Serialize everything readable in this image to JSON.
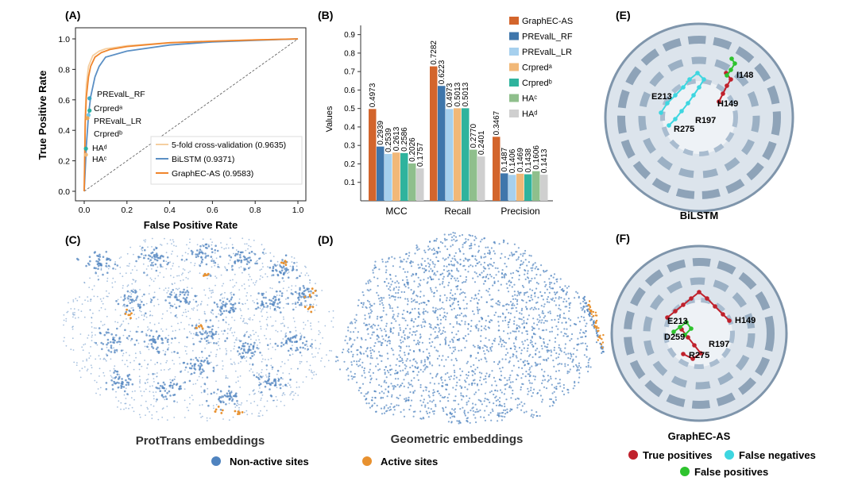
{
  "panels": {
    "a": "(A)",
    "b": "(B)",
    "c": "(C)",
    "d": "(D)",
    "e": "(E)",
    "f": "(F)"
  },
  "roc": {
    "xlabel": "False Positive Rate",
    "ylabel": "True Positive Rate",
    "ticks": [
      "0.0",
      "0.2",
      "0.4",
      "0.6",
      "0.8",
      "1.0"
    ],
    "point_labels": [
      "PREvalL_RF",
      "Crpredᵃ",
      "PREvalL_LR",
      "Crpredᵇ",
      "HAᵈ",
      "HAᶜ"
    ],
    "legend": [
      {
        "label": "5-fold cross-validation (0.9635)",
        "color": "#f5cfa0"
      },
      {
        "label": "BiLSTM (0.9371)",
        "color": "#5b8fc4"
      },
      {
        "label": "GraphEC-AS (0.9583)",
        "color": "#f0852c"
      }
    ]
  },
  "chart_data": [
    {
      "type": "line",
      "title": "",
      "xlabel": "False Positive Rate",
      "ylabel": "True Positive Rate",
      "xlim": [
        0,
        1
      ],
      "ylim": [
        0,
        1
      ],
      "series": [
        {
          "name": "5-fold cross-validation (0.9635)",
          "color": "#f5cfa0",
          "x": [
            0,
            0.005,
            0.01,
            0.02,
            0.04,
            0.07,
            0.1,
            0.2,
            0.4,
            0.6,
            0.8,
            1.0
          ],
          "y": [
            0,
            0.5,
            0.7,
            0.82,
            0.89,
            0.92,
            0.935,
            0.955,
            0.975,
            0.985,
            0.993,
            1.0
          ]
        },
        {
          "name": "BiLSTM (0.9371)",
          "color": "#5b8fc4",
          "x": [
            0,
            0.01,
            0.02,
            0.03,
            0.05,
            0.07,
            0.1,
            0.2,
            0.4,
            0.6,
            0.8,
            1.0
          ],
          "y": [
            0,
            0.3,
            0.5,
            0.62,
            0.75,
            0.82,
            0.88,
            0.92,
            0.96,
            0.98,
            0.99,
            1.0
          ]
        },
        {
          "name": "GraphEC-AS (0.9583)",
          "color": "#f0852c",
          "x": [
            0,
            0.005,
            0.01,
            0.02,
            0.03,
            0.05,
            0.08,
            0.12,
            0.2,
            0.4,
            0.6,
            0.8,
            1.0
          ],
          "y": [
            0,
            0.45,
            0.62,
            0.75,
            0.82,
            0.88,
            0.91,
            0.93,
            0.95,
            0.975,
            0.985,
            0.993,
            1.0
          ]
        }
      ],
      "points": [
        {
          "label": "PREvalL_RF",
          "x": 0.025,
          "y": 0.61
        },
        {
          "label": "Crpredᵃ",
          "x": 0.025,
          "y": 0.53
        },
        {
          "label": "PREvalL_LR",
          "x": 0.02,
          "y": 0.5
        },
        {
          "label": "Crpredᵇ",
          "x": 0.015,
          "y": 0.48
        },
        {
          "label": "HAᵈ",
          "x": 0.008,
          "y": 0.28
        },
        {
          "label": "HAᶜ",
          "x": 0.008,
          "y": 0.24
        }
      ]
    },
    {
      "type": "bar",
      "title": "",
      "xlabel": "",
      "ylabel": "Values",
      "ylim": [
        0,
        0.95
      ],
      "yticks": [
        "0.1",
        "0.2",
        "0.3",
        "0.4",
        "0.5",
        "0.6",
        "0.7",
        "0.8",
        "0.9"
      ],
      "categories": [
        "MCC",
        "Recall",
        "Precision"
      ],
      "series": [
        {
          "name": "GraphEC-AS",
          "color": "#d3652c",
          "values": [
            0.4973,
            0.7282,
            0.3467
          ],
          "labels": [
            "0.4973",
            "0.7282",
            "0.3467"
          ]
        },
        {
          "name": "PREvalL_RF",
          "color": "#3f76ab",
          "values": [
            0.2939,
            0.6223,
            0.1487
          ],
          "labels": [
            "0.2939",
            "0.6223",
            "0.1487"
          ]
        },
        {
          "name": "PREvalL_LR",
          "color": "#a6d0ee",
          "values": [
            0.2539,
            0.4973,
            0.1406
          ],
          "labels": [
            "0.2539",
            "0.4973",
            "0.1406"
          ]
        },
        {
          "name": "Crpredᵃ",
          "color": "#f1b878",
          "values": [
            0.2613,
            0.5013,
            0.1469
          ],
          "labels": [
            "0.2613",
            "0.5013",
            "0.1469"
          ]
        },
        {
          "name": "Crpredᵇ",
          "color": "#2fb39d",
          "values": [
            0.2586,
            0.5013,
            0.1438
          ],
          "labels": [
            "0.2586",
            "0.5013",
            "0.1438"
          ]
        },
        {
          "name": "HAᶜ",
          "color": "#8fbf8c",
          "values": [
            0.2026,
            0.277,
            0.1606
          ],
          "labels": [
            "0.2026",
            "0.2770",
            "0.1606"
          ]
        },
        {
          "name": "HAᵈ",
          "color": "#cfcfcf",
          "values": [
            0.1757,
            0.2401,
            0.1413
          ],
          "labels": [
            "0.1757",
            "0.2401",
            "0.1413"
          ]
        }
      ]
    },
    {
      "type": "scatter",
      "title": "ProtTrans embeddings",
      "series": [
        {
          "name": "Non-active sites",
          "color": "#4f83bf"
        },
        {
          "name": "Active sites",
          "color": "#e8912f"
        }
      ]
    },
    {
      "type": "scatter",
      "title": "Geometric embeddings",
      "series": [
        {
          "name": "Non-active sites",
          "color": "#4f83bf"
        },
        {
          "name": "Active sites",
          "color": "#e8912f"
        }
      ]
    }
  ],
  "captions": {
    "c": "ProtTrans embeddings",
    "d": "Geometric embeddings",
    "e": "BiLSTM",
    "f": "GraphEC-AS"
  },
  "tsne_legend": [
    {
      "label": "Non-active sites",
      "color": "#4f83bf"
    },
    {
      "label": "Active sites",
      "color": "#e8912f"
    }
  ],
  "structure_e": {
    "residues": [
      "I148",
      "E213",
      "H149",
      "R197",
      "R275"
    ]
  },
  "structure_f": {
    "residues": [
      "H149",
      "E213",
      "D259",
      "R197",
      "R275"
    ]
  },
  "structure_legend": [
    {
      "label": "True positives",
      "color": "#c0212c"
    },
    {
      "label": "False negatives",
      "color": "#3ed6e0"
    },
    {
      "label": "False positives",
      "color": "#2ec32e"
    }
  ]
}
